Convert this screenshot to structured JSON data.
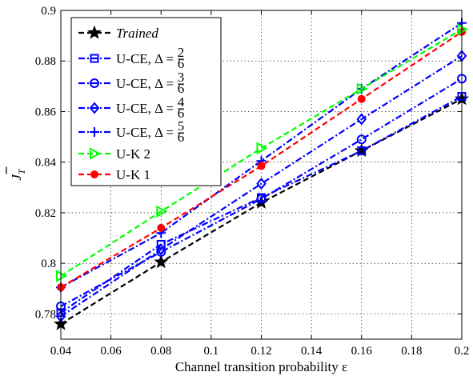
{
  "chart_data": {
    "type": "line",
    "xlabel": "Channel transition probability ε",
    "ylabel": "J̄_T",
    "xlim": [
      0.04,
      0.2
    ],
    "ylim": [
      0.77,
      0.9
    ],
    "xticks": [
      0.04,
      0.06,
      0.08,
      0.1,
      0.12,
      0.14,
      0.16,
      0.18,
      0.2
    ],
    "xtick_labels": [
      "0.04",
      "0.06",
      "0.08",
      "0.1",
      "0.12",
      "0.14",
      "0.16",
      "0.18",
      "0.2"
    ],
    "yticks": [
      0.78,
      0.8,
      0.82,
      0.84,
      0.86,
      0.88,
      0.9
    ],
    "ytick_labels": [
      "0.78",
      "0.8",
      "0.82",
      "0.84",
      "0.86",
      "0.88",
      "0.9"
    ],
    "grid": true,
    "legend_position": "top-left",
    "x": [
      0.04,
      0.08,
      0.12,
      0.16,
      0.2
    ],
    "series": [
      {
        "name": "Trained",
        "values": [
          0.776,
          0.8005,
          0.824,
          0.8445,
          0.865
        ],
        "color": "#000000",
        "marker": "star",
        "dash": "dashed"
      },
      {
        "name": "U-CE, Δ = 2/6",
        "values": [
          0.7805,
          0.8075,
          0.826,
          0.8445,
          0.866
        ],
        "color": "#0000ff",
        "marker": "square",
        "dash": "dashdot"
      },
      {
        "name": "U-CE, Δ = 3/6",
        "values": [
          0.783,
          0.8045,
          0.8255,
          0.849,
          0.873
        ],
        "color": "#0000ff",
        "marker": "circle",
        "dash": "dashdot"
      },
      {
        "name": "U-CE, Δ = 4/6",
        "values": [
          0.779,
          0.8055,
          0.8315,
          0.857,
          0.882
        ],
        "color": "#0000ff",
        "marker": "diamond",
        "dash": "dashdot"
      },
      {
        "name": "U-CE, Δ = 5/6",
        "values": [
          0.7905,
          0.812,
          0.8405,
          0.869,
          0.895
        ],
        "color": "#0000ff",
        "marker": "plus",
        "dash": "dashdot"
      },
      {
        "name": "U-K 2",
        "values": [
          0.795,
          0.8205,
          0.8455,
          0.869,
          0.8925
        ],
        "color": "#00ff00",
        "marker": "triangle-right",
        "dash": "dashed"
      },
      {
        "name": "U-K 1",
        "values": [
          0.7905,
          0.814,
          0.8385,
          0.865,
          0.8915
        ],
        "color": "#ff0000",
        "marker": "dot",
        "dash": "dashed"
      }
    ],
    "legend": [
      {
        "label": "Trained",
        "italic": true
      },
      {
        "label": "U-CE, Δ =",
        "frac_num": "2",
        "frac_den": "6"
      },
      {
        "label": "U-CE, Δ =",
        "frac_num": "3",
        "frac_den": "6"
      },
      {
        "label": "U-CE, Δ =",
        "frac_num": "4",
        "frac_den": "6"
      },
      {
        "label": "U-CE, Δ =",
        "frac_num": "5",
        "frac_den": "6"
      },
      {
        "label": "U-K 2"
      },
      {
        "label": "U-K 1"
      }
    ]
  }
}
